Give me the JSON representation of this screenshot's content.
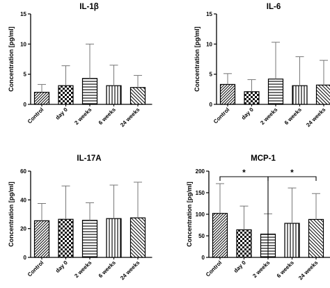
{
  "chart_data": [
    {
      "type": "bar",
      "title": "IL-1β",
      "ylabel": "Concentration [pg/ml]",
      "categories": [
        "Control",
        "day 0",
        "2 weeks",
        "6 weeks",
        "24 weeks"
      ],
      "values": [
        2.0,
        3.1,
        4.3,
        3.1,
        2.8
      ],
      "error_upper": [
        3.3,
        6.4,
        10.0,
        6.5,
        4.8
      ],
      "ylim": [
        0,
        15
      ],
      "yticks": [
        0,
        5,
        10,
        15
      ],
      "significance": []
    },
    {
      "type": "bar",
      "title": "IL-6",
      "ylabel": "Concentration [pg/ml]",
      "categories": [
        "Control",
        "day 0",
        "2 weeks",
        "6 weeks",
        "24 weeks"
      ],
      "values": [
        3.3,
        2.1,
        4.2,
        3.1,
        3.2
      ],
      "error_upper": [
        5.1,
        4.1,
        10.3,
        7.9,
        7.3
      ],
      "ylim": [
        0,
        15
      ],
      "yticks": [
        0,
        5,
        10,
        15
      ],
      "significance": []
    },
    {
      "type": "bar",
      "title": "IL-17A",
      "ylabel": "Concentration [pg/ml]",
      "categories": [
        "Control",
        "day 0",
        "2 weeks",
        "6 weeks",
        "24 weeks"
      ],
      "values": [
        25.5,
        26.5,
        25.8,
        27.0,
        27.5
      ],
      "error_upper": [
        37.5,
        49.7,
        38.0,
        50.3,
        52.3
      ],
      "ylim": [
        0,
        60
      ],
      "yticks": [
        0,
        20,
        40,
        60
      ],
      "significance": []
    },
    {
      "type": "bar",
      "title": "MCP-1",
      "ylabel": "Concentration [pg/ml]",
      "categories": [
        "Control",
        "day 0",
        "2 weeks",
        "6 weeks",
        "24 weeks"
      ],
      "values": [
        102,
        64,
        54,
        79,
        88
      ],
      "error_upper": [
        171,
        119,
        101,
        161,
        148
      ],
      "ylim": [
        0,
        200
      ],
      "yticks": [
        0,
        50,
        100,
        150,
        200
      ],
      "significance": [
        {
          "from": 0,
          "to": 2,
          "label": "*"
        },
        {
          "from": 2,
          "to": 4,
          "label": "*"
        }
      ]
    }
  ]
}
